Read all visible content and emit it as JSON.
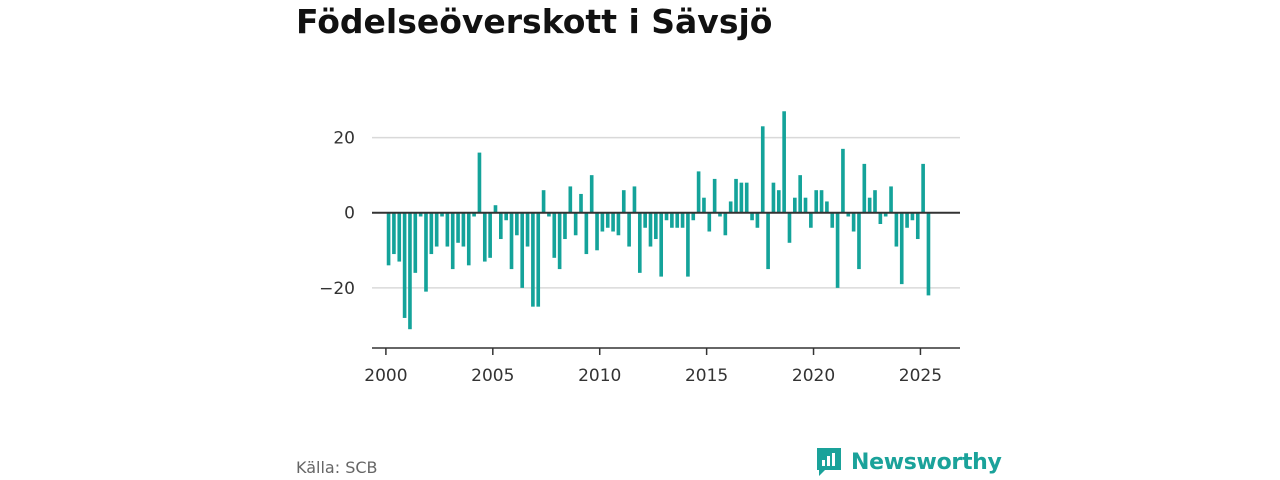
{
  "title": "Födelseöverskott i Sävsjö",
  "source": "Källa: SCB",
  "brand": "Newsworthy",
  "colors": {
    "bar": "#14a39a",
    "brand": "#1aa29a"
  },
  "chart_data": {
    "type": "bar",
    "x_axis": {
      "ticks": [
        2000,
        2005,
        2010,
        2015,
        2020,
        2025
      ],
      "range": [
        1999.35,
        2026.85
      ]
    },
    "y_axis": {
      "ticks": [
        -20,
        0,
        20
      ],
      "tick_labels": [
        "−20",
        "0",
        "20"
      ],
      "range": [
        -36,
        30
      ]
    },
    "grid": true,
    "period": "quarter",
    "start": "2000-Q1",
    "values": [
      -14,
      -11,
      -13,
      -28,
      -31,
      -16,
      -1,
      -21,
      -11,
      -9,
      -1,
      -9,
      -15,
      -8,
      -9,
      -14,
      -1,
      16,
      -13,
      -12,
      2,
      -7,
      -2,
      -15,
      -6,
      -20,
      -9,
      -25,
      -25,
      6,
      -1,
      -12,
      -15,
      -7,
      7,
      -6,
      5,
      -11,
      10,
      -10,
      -5,
      -4,
      -5,
      -6,
      6,
      -9,
      7,
      -16,
      -4,
      -9,
      -7,
      -17,
      -2,
      -4,
      -4,
      -4,
      -17,
      -2,
      11,
      4,
      -5,
      9,
      -1,
      -6,
      3,
      9,
      8,
      8,
      -2,
      -4,
      23,
      -15,
      8,
      6,
      27,
      -8,
      4,
      10,
      4,
      -4,
      6,
      6,
      3,
      -4,
      -20,
      17,
      -1,
      -5,
      -15,
      13,
      4,
      6,
      -3,
      -1,
      7,
      -9,
      -19,
      -4,
      -2,
      -7,
      13,
      -22
    ]
  }
}
